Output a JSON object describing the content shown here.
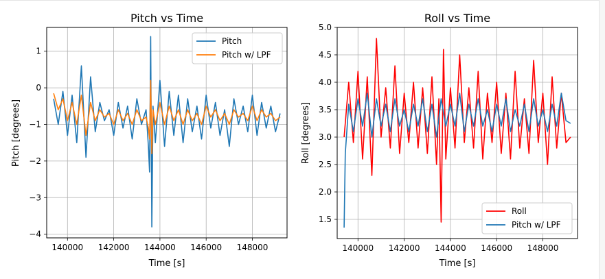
{
  "colors": {
    "blue": "#1f77b4",
    "orange": "#ff7f0e",
    "red": "#ff0000",
    "grid": "#b0b0b0",
    "frame": "#000000"
  },
  "chart_data": [
    {
      "type": "line",
      "title": "Pitch vs Time",
      "xlabel": "Time [s]",
      "ylabel": "Pitch [degrees]",
      "xlim": [
        139100,
        149500
      ],
      "ylim": [
        -4.1,
        1.65
      ],
      "xticks": [
        140000,
        142000,
        144000,
        146000,
        148000
      ],
      "xtick_labels": [
        "140000",
        "142000",
        "144000",
        "146000",
        "148000"
      ],
      "yticks": [
        -4,
        -3,
        -2,
        -1,
        0,
        1
      ],
      "ytick_labels": [
        "−4",
        "−3",
        "−2",
        "−1",
        "0",
        "1"
      ],
      "grid": true,
      "legend": {
        "placement": "upper right",
        "entries": [
          "Pitch",
          "Pitch w/ LPF"
        ]
      },
      "series": [
        {
          "name": "Pitch",
          "color": "#1f77b4",
          "x": [
            139400,
            139600,
            139800,
            140000,
            140200,
            140400,
            140600,
            140800,
            141000,
            141200,
            141400,
            141600,
            141800,
            142000,
            142200,
            142400,
            142600,
            142800,
            143000,
            143200,
            143400,
            143500,
            143550,
            143600,
            143650,
            143700,
            143800,
            144000,
            144200,
            144400,
            144600,
            144800,
            145000,
            145200,
            145400,
            145600,
            145800,
            146000,
            146200,
            146400,
            146600,
            146800,
            147000,
            147200,
            147400,
            147600,
            147800,
            148000,
            148200,
            148400,
            148600,
            148800,
            149000,
            149200
          ],
          "y": [
            -0.3,
            -1.0,
            -0.1,
            -1.3,
            -0.2,
            -1.5,
            0.6,
            -1.9,
            0.3,
            -1.2,
            -0.4,
            -0.9,
            -0.6,
            -1.3,
            -0.4,
            -1.1,
            -0.5,
            -1.4,
            -0.3,
            -1.0,
            -0.6,
            -1.6,
            -2.3,
            1.4,
            -3.8,
            -0.5,
            -1.5,
            0.2,
            -1.6,
            -0.1,
            -1.3,
            -0.2,
            -1.5,
            -0.3,
            -1.2,
            -0.5,
            -1.4,
            -0.2,
            -1.1,
            -0.4,
            -1.3,
            -0.6,
            -1.6,
            -0.3,
            -1.0,
            -0.5,
            -1.2,
            -0.2,
            -1.3,
            -0.4,
            -1.1,
            -0.5,
            -1.2,
            -0.7
          ]
        },
        {
          "name": "Pitch w/ LPF",
          "color": "#ff7f0e",
          "x": [
            139400,
            139600,
            139800,
            140000,
            140200,
            140400,
            140600,
            140800,
            141000,
            141200,
            141400,
            141600,
            141800,
            142000,
            142200,
            142400,
            142600,
            142800,
            143000,
            143200,
            143400,
            143500,
            143550,
            143600,
            143650,
            143700,
            143800,
            144000,
            144200,
            144400,
            144600,
            144800,
            145000,
            145200,
            145400,
            145600,
            145800,
            146000,
            146200,
            146400,
            146600,
            146800,
            147000,
            147200,
            147400,
            147600,
            147800,
            148000,
            148200,
            148400,
            148600,
            148800,
            149000,
            149200
          ],
          "y": [
            -0.15,
            -0.6,
            -0.3,
            -0.9,
            -0.4,
            -1.0,
            -0.2,
            -1.3,
            -0.4,
            -0.9,
            -0.6,
            -0.8,
            -0.7,
            -1.0,
            -0.6,
            -0.9,
            -0.7,
            -1.0,
            -0.6,
            -0.9,
            -0.8,
            -1.1,
            -1.4,
            0.2,
            -1.8,
            -0.6,
            -1.0,
            -0.4,
            -1.0,
            -0.5,
            -0.9,
            -0.6,
            -1.0,
            -0.6,
            -0.9,
            -0.7,
            -1.0,
            -0.5,
            -0.8,
            -0.6,
            -0.9,
            -0.7,
            -1.0,
            -0.6,
            -0.8,
            -0.7,
            -0.9,
            -0.5,
            -0.9,
            -0.6,
            -0.8,
            -0.7,
            -0.9,
            -0.8
          ]
        }
      ]
    },
    {
      "type": "line",
      "title": "Roll vs Time",
      "xlabel": "Time [s]",
      "ylabel": "Roll [degrees]",
      "xlim": [
        139100,
        149500
      ],
      "ylim": [
        1.15,
        5.0
      ],
      "xticks": [
        140000,
        142000,
        144000,
        146000,
        148000
      ],
      "xtick_labels": [
        "140000",
        "142000",
        "144000",
        "146000",
        "148000"
      ],
      "yticks": [
        1.5,
        2.0,
        2.5,
        3.0,
        3.5,
        4.0,
        4.5,
        5.0
      ],
      "ytick_labels": [
        "1.5",
        "2.0",
        "2.5",
        "3.0",
        "3.5",
        "4.0",
        "4.5",
        "5.0"
      ],
      "grid": true,
      "legend": {
        "placement": "lower right",
        "entries": [
          "Roll",
          "Pitch w/ LPF"
        ]
      },
      "series": [
        {
          "name": "Roll",
          "color": "#ff0000",
          "x": [
            139400,
            139600,
            139800,
            140000,
            140200,
            140400,
            140600,
            140800,
            141000,
            141200,
            141400,
            141600,
            141800,
            142000,
            142200,
            142400,
            142600,
            142800,
            143000,
            143200,
            143400,
            143500,
            143600,
            143700,
            143800,
            144000,
            144200,
            144400,
            144600,
            144800,
            145000,
            145200,
            145400,
            145600,
            145800,
            146000,
            146200,
            146400,
            146600,
            146800,
            147000,
            147200,
            147400,
            147600,
            147800,
            148000,
            148200,
            148400,
            148600,
            148800,
            149000,
            149200
          ],
          "y": [
            3.0,
            4.0,
            2.9,
            4.2,
            2.6,
            4.1,
            2.3,
            4.8,
            3.0,
            3.9,
            2.8,
            4.3,
            2.7,
            3.8,
            2.9,
            4.0,
            2.8,
            3.9,
            2.7,
            4.1,
            2.5,
            3.7,
            1.45,
            4.6,
            2.6,
            3.9,
            2.8,
            4.5,
            2.9,
            3.9,
            2.8,
            4.2,
            2.6,
            3.8,
            2.9,
            4.0,
            2.7,
            3.8,
            2.6,
            4.2,
            2.8,
            3.7,
            2.7,
            4.4,
            2.9,
            3.8,
            2.5,
            4.1,
            2.8,
            3.8,
            2.9,
            3.0
          ]
        },
        {
          "name": "Pitch w/ LPF",
          "color": "#1f77b4",
          "x": [
            139400,
            139450,
            139600,
            139800,
            140000,
            140200,
            140400,
            140600,
            140800,
            141000,
            141200,
            141400,
            141600,
            141800,
            142000,
            142200,
            142400,
            142600,
            142800,
            143000,
            143200,
            143400,
            143600,
            143800,
            144000,
            144200,
            144400,
            144600,
            144800,
            145000,
            145200,
            145400,
            145600,
            145800,
            146000,
            146200,
            146400,
            146600,
            146800,
            147000,
            147200,
            147400,
            147600,
            147800,
            148000,
            148200,
            148400,
            148600,
            148800,
            149000,
            149200
          ],
          "y": [
            1.35,
            2.7,
            3.6,
            3.1,
            3.7,
            3.2,
            3.8,
            3.0,
            3.7,
            3.2,
            3.6,
            3.1,
            3.7,
            3.2,
            3.5,
            3.1,
            3.6,
            3.2,
            3.7,
            3.1,
            3.6,
            3.0,
            3.7,
            3.2,
            3.6,
            3.2,
            3.8,
            3.1,
            3.6,
            3.2,
            3.7,
            3.2,
            3.5,
            3.1,
            3.6,
            3.2,
            3.7,
            3.1,
            3.5,
            3.2,
            3.6,
            3.1,
            3.7,
            3.2,
            3.5,
            3.1,
            3.6,
            3.2,
            3.8,
            3.3,
            3.25
          ]
        }
      ]
    }
  ]
}
